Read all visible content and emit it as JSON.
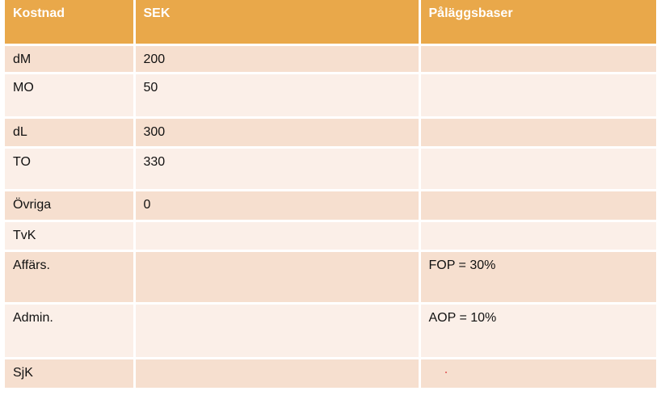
{
  "table": {
    "headers": {
      "kostnad": "Kostnad",
      "sek": "SEK",
      "palaggsbaser": "Påläggsbaser"
    },
    "rows": [
      {
        "kostnad": "dM",
        "sek": "200",
        "palaggsbaser": ""
      },
      {
        "kostnad": "MO",
        "sek": "50",
        "palaggsbaser": ""
      },
      {
        "kostnad": "dL",
        "sek": "300",
        "palaggsbaser": ""
      },
      {
        "kostnad": "TO",
        "sek": "330",
        "palaggsbaser": ""
      },
      {
        "kostnad": "Övriga",
        "sek": "0",
        "palaggsbaser": ""
      },
      {
        "kostnad": "TvK",
        "sek": "",
        "palaggsbaser": ""
      },
      {
        "kostnad": "Affärs.",
        "sek": "",
        "palaggsbaser": "FOP = 30%"
      },
      {
        "kostnad": "Admin.",
        "sek": "",
        "palaggsbaser": "AOP = 10%"
      },
      {
        "kostnad": "SjK",
        "sek": "",
        "palaggsbaser": ""
      }
    ]
  },
  "colors": {
    "header_bg": "#e9a84a",
    "row_dark": "#f6dfcf",
    "row_light": "#fbefe8"
  }
}
